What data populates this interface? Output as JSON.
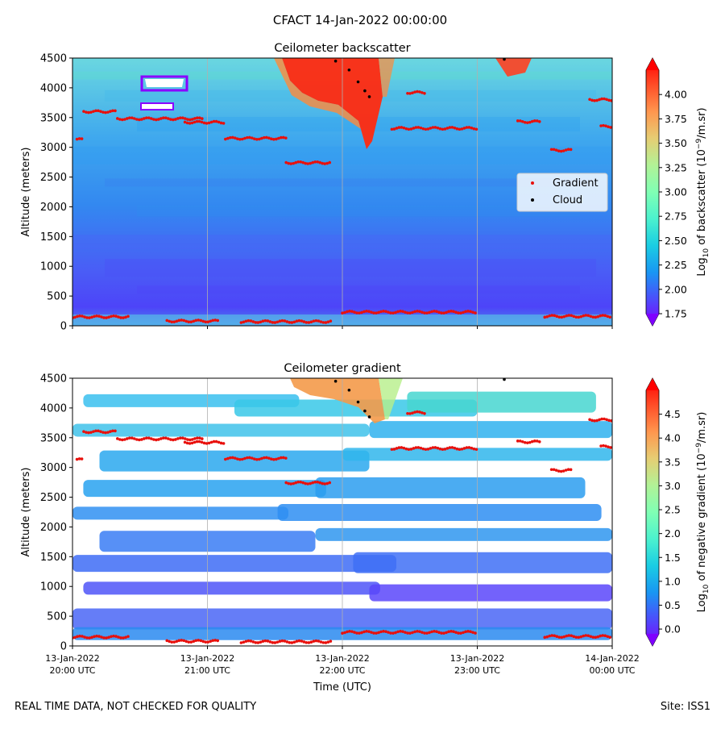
{
  "figure": {
    "title": "CFACT 14-Jan-2022 00:00:00",
    "footer_left": "REAL TIME DATA, NOT CHECKED FOR QUALITY",
    "footer_right": "Site: ISS1"
  },
  "time_ticks": [
    {
      "date": "13-Jan-2022",
      "time": "20:00 UTC"
    },
    {
      "date": "13-Jan-2022",
      "time": "21:00 UTC"
    },
    {
      "date": "13-Jan-2022",
      "time": "22:00 UTC"
    },
    {
      "date": "13-Jan-2022",
      "time": "23:00 UTC"
    },
    {
      "date": "14-Jan-2022",
      "time": "00:00 UTC"
    }
  ],
  "xlabel": "Time (UTC)",
  "colors": {
    "gradient_marker": "#e8100c",
    "cloud_marker": "#000000",
    "gridline": "#b0b0b0",
    "colormap": [
      "#7f00ff",
      "#4c4dfb",
      "#1996f3",
      "#1acde3",
      "#4cf2ce",
      "#80ffb4",
      "#b2f296",
      "#e6cd73",
      "#ff964e",
      "#ff4d27",
      "#ff0000"
    ]
  },
  "chart_data": [
    {
      "type": "heatmap",
      "title": "Ceilometer backscatter",
      "ylabel": "Altitude (meters)",
      "xlim": [
        "13-Jan-2022 20:00",
        "14-Jan-2022 00:00"
      ],
      "ylim": [
        0,
        4500
      ],
      "yticks": [
        "0",
        "500",
        "1000",
        "1500",
        "2000",
        "2500",
        "3000",
        "3500",
        "4000",
        "4500"
      ],
      "grid": "vertical lines at hourly ticks",
      "legend": {
        "placement": "center-right",
        "entries": [
          "Gradient",
          "Cloud"
        ]
      },
      "colorbar": {
        "label": "Log10 of backscatter (10^-9/m.sr)",
        "range": [
          1.75,
          4.25
        ],
        "ticks": [
          "1.75",
          "2.00",
          "2.25",
          "2.50",
          "2.75",
          "3.00",
          "3.25",
          "3.50",
          "3.75",
          "4.00"
        ],
        "extend": "both"
      },
      "gradient_layers_m": [
        {
          "start": "20:00",
          "end": "20:25",
          "altitude": 150
        },
        {
          "start": "20:42",
          "end": "21:05",
          "altitude": 80
        },
        {
          "start": "21:15",
          "end": "21:55",
          "altitude": 70
        },
        {
          "start": "22:00",
          "end": "23:00",
          "altitude": 230
        },
        {
          "start": "23:30",
          "end": "00:00",
          "altitude": 160
        },
        {
          "start": "20:05",
          "end": "20:20",
          "altitude": 3600
        },
        {
          "start": "20:20",
          "end": "20:58",
          "altitude": 3480
        },
        {
          "start": "20:50",
          "end": "21:08",
          "altitude": 3420
        },
        {
          "start": "21:08",
          "end": "21:35",
          "altitude": 3150
        },
        {
          "start": "21:35",
          "end": "21:55",
          "altitude": 2740
        },
        {
          "start": "22:22",
          "end": "23:00",
          "altitude": 3320
        },
        {
          "start": "22:29",
          "end": "22:37",
          "altitude": 3920
        },
        {
          "start": "23:18",
          "end": "23:28",
          "altitude": 3430
        },
        {
          "start": "23:33",
          "end": "23:42",
          "altitude": 2950
        },
        {
          "start": "23:50",
          "end": "00:00",
          "altitude": 3800
        },
        {
          "start": "23:55",
          "end": "00:00",
          "altitude": 3350
        },
        {
          "start": "20:02",
          "end": "20:05",
          "altitude": 3130
        }
      ],
      "cloud_base_m": [
        {
          "time": "21:57",
          "altitude": 4450
        },
        {
          "time": "22:03",
          "altitude": 4300
        },
        {
          "time": "22:07",
          "altitude": 4100
        },
        {
          "time": "22:10",
          "altitude": 3950
        },
        {
          "time": "22:12",
          "altitude": 3850
        },
        {
          "time": "23:12",
          "altitude": 4480
        }
      ]
    },
    {
      "type": "heatmap",
      "title": "Ceilometer gradient",
      "ylabel": "Altitude (meters)",
      "xlim": [
        "13-Jan-2022 20:00",
        "14-Jan-2022 00:00"
      ],
      "ylim": [
        0,
        4500
      ],
      "yticks": [
        "0",
        "500",
        "1000",
        "1500",
        "2000",
        "2500",
        "3000",
        "3500",
        "4000",
        "4500"
      ],
      "grid": "vertical lines at hourly ticks",
      "colorbar": {
        "label": "Log10 of negative gradient (10^-9/m.sr)",
        "range": [
          -0.1,
          5.0
        ],
        "ticks": [
          "0.0",
          "0.5",
          "1.0",
          "1.5",
          "2.0",
          "2.5",
          "3.0",
          "3.5",
          "4.0",
          "4.5"
        ],
        "extend": "both"
      }
    }
  ]
}
